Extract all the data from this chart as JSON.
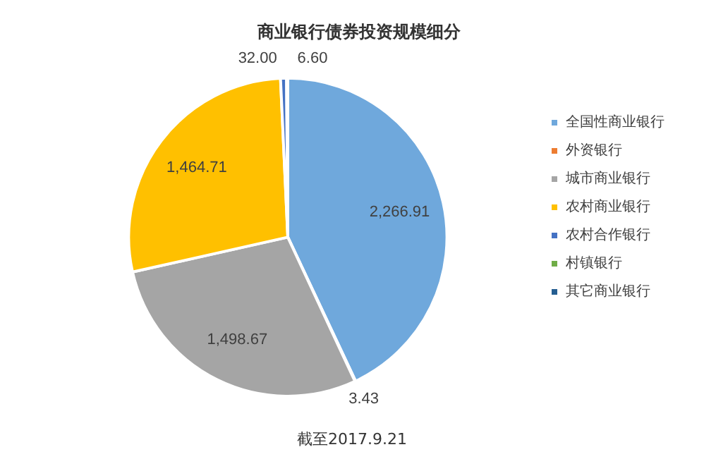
{
  "chart_data": {
    "type": "pie",
    "title": "商业银行债券投资规模细分",
    "categories": [
      "全国性商业银行",
      "外资银行",
      "城市商业银行",
      "农村商业银行",
      "农村合作银行",
      "村镇银行",
      "其它商业银行"
    ],
    "values": [
      2266.91,
      3.43,
      1498.67,
      1464.71,
      32.0,
      6.6,
      null
    ],
    "value_labels": [
      "2,266.91",
      "3.43",
      "1,498.67",
      "1,464.71",
      "32.00",
      "6.60",
      null
    ],
    "colors": [
      "#6fa8dc",
      "#ed7d31",
      "#a5a5a5",
      "#ffc000",
      "#4472c4",
      "#70ad47",
      "#255e91"
    ],
    "legend": "right",
    "annotations": [
      "截至2017.9.21"
    ]
  }
}
